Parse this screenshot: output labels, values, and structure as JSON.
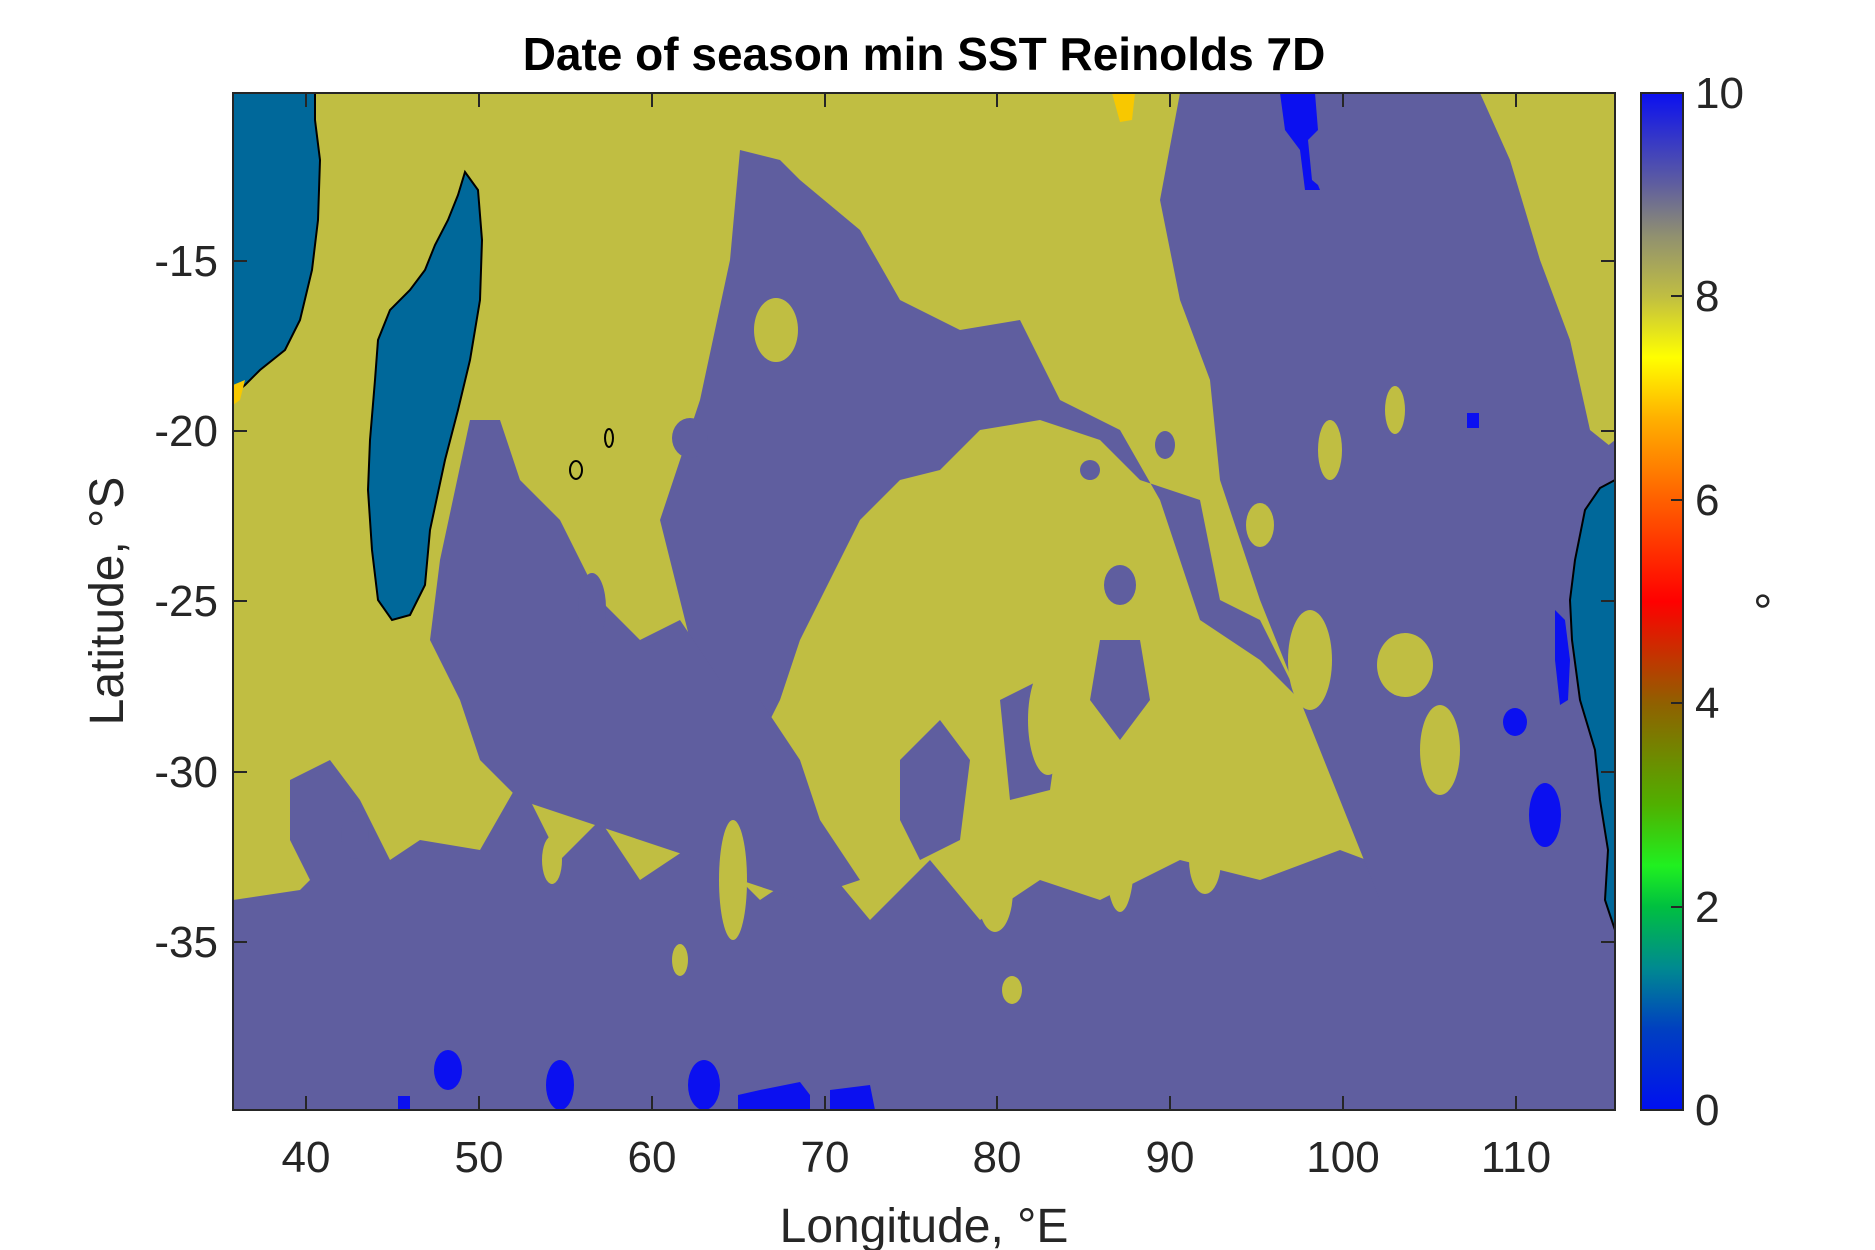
{
  "chart_data": {
    "type": "heatmap",
    "title": "Date of season min SST Reinolds 7D",
    "xlabel": "Longitude, °E",
    "ylabel": "Latitude, °S",
    "colorbar_label": "°",
    "xlim": [
      35.5,
      116
    ],
    "ylim": [
      -40,
      -10.5
    ],
    "x_ticks": [
      40,
      50,
      60,
      70,
      80,
      90,
      100,
      110
    ],
    "x_tick_labels": [
      "40",
      "50",
      "60",
      "70",
      "80",
      "90",
      "100",
      "110"
    ],
    "y_ticks": [
      -15,
      -20,
      -25,
      -30,
      -35
    ],
    "y_tick_labels": [
      "-15",
      "-20",
      "-25",
      "-30",
      "-35"
    ],
    "colorbar_range": [
      0,
      10
    ],
    "colorbar_ticks": [
      0,
      2,
      4,
      6,
      8,
      10
    ],
    "colorbar_tick_labels": [
      "0",
      "2",
      "4",
      "6",
      "8",
      "10"
    ],
    "colormap": "jet-like (blue-green-yellow-orange-red-gray-blue)",
    "colors": {
      "value_8": "#c0be42",
      "value_9_5": "#5f5e9f",
      "value_10": "#0b10f0",
      "value_7": "#f8c800",
      "land": "#00689a"
    }
  }
}
